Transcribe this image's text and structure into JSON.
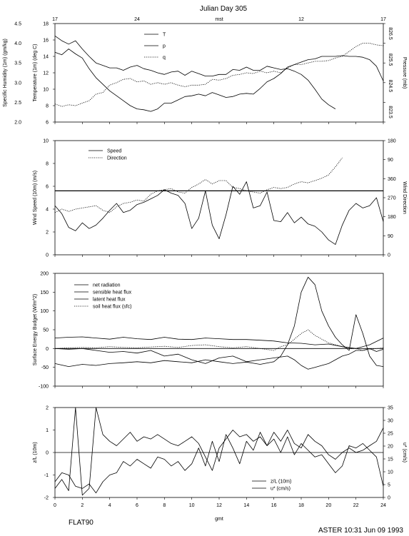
{
  "figure": {
    "title": "Julian Day 305",
    "station": "FLAT90",
    "footer": "ASTER 10:31 Jun 09 1993",
    "top_axis": {
      "unit": "mst",
      "ticks": [
        "17",
        "24",
        "mst",
        "12",
        "17"
      ]
    },
    "bottom_axis": {
      "label": "gmt",
      "ticks": [
        "0",
        "2",
        "4",
        "6",
        "8",
        "10",
        "12",
        "14",
        "16",
        "18",
        "20",
        "22",
        "24"
      ]
    }
  },
  "chart_data": [
    {
      "type": "line",
      "panel": "met",
      "xlim": [
        0,
        24
      ],
      "ylim": [
        6,
        18
      ],
      "ylabel": "Temperature (1m) (deg C)",
      "ylabel2": "Specific Humidity (1m) (gm/kg)",
      "ylabel3": "Pressure (mb)",
      "yticks": [
        "6",
        "8",
        "10",
        "12",
        "14",
        "16",
        "18"
      ],
      "yticks2": [
        "2.0",
        "2.5",
        "3.0",
        "3.5",
        "4.0",
        "4.5"
      ],
      "yticks3": [
        "823.5",
        "824.5",
        "825.5",
        "826.5"
      ],
      "legend": "top-left",
      "series": [
        {
          "name": "T",
          "style": "solid",
          "x": [
            0,
            0.5,
            1,
            1.5,
            2,
            2.5,
            3,
            3.5,
            4,
            4.5,
            5,
            5.5,
            6,
            6.5,
            7,
            7.5,
            8,
            8.5,
            9,
            9.5,
            10,
            10.5,
            11,
            11.5,
            12,
            12.5,
            13,
            13.5,
            14,
            14.5,
            15,
            15.5,
            16,
            16.5,
            17,
            17.5,
            18,
            18.5,
            19,
            19.5,
            20,
            20.5
          ],
          "y": [
            16.5,
            15.9,
            15.5,
            15.9,
            14.9,
            14.0,
            13.2,
            12.9,
            12.6,
            12.6,
            12.3,
            12.7,
            12.9,
            12.5,
            12.3,
            12.0,
            11.8,
            12.1,
            12.2,
            11.7,
            12.2,
            11.9,
            11.6,
            11.6,
            11.8,
            11.8,
            12.4,
            12.3,
            12.7,
            12.3,
            12.3,
            12.8,
            12.6,
            12.4,
            12.5,
            12.2,
            11.8,
            11.1,
            10.0,
            8.8,
            8.1,
            7.6
          ]
        },
        {
          "name": "p",
          "style": "solid",
          "x": [
            0,
            0.5,
            1,
            1.5,
            2,
            2.5,
            3,
            3.5,
            4,
            4.5,
            5,
            5.5,
            6,
            6.5,
            7,
            7.5,
            8,
            8.5,
            9,
            9.5,
            10,
            10.5,
            11,
            11.5,
            12,
            12.5,
            13,
            13.5,
            14,
            14.5,
            15,
            15.5,
            16,
            16.5,
            17,
            17.5,
            18,
            18.5,
            19,
            19.5,
            20,
            20.5,
            21,
            21.5,
            22,
            22.5,
            23,
            23.5,
            24
          ],
          "y": [
            14.5,
            14.2,
            14.9,
            14.3,
            13.8,
            12.5,
            11.4,
            10.6,
            9.8,
            9.2,
            8.6,
            8.0,
            7.6,
            7.5,
            7.3,
            7.6,
            8.3,
            8.3,
            8.7,
            9.1,
            9.2,
            9.4,
            9.2,
            9.6,
            9.3,
            9.0,
            9.1,
            9.4,
            9.5,
            9.4,
            10.1,
            10.9,
            11.3,
            11.9,
            12.7,
            13.0,
            13.3,
            13.6,
            13.7,
            14.0,
            14.0,
            14.0,
            14.1,
            14.0,
            14.0,
            13.9,
            13.6,
            12.8,
            11.0
          ]
        },
        {
          "name": "q",
          "style": "dotted",
          "x": [
            0,
            0.5,
            1,
            1.5,
            2,
            2.5,
            3,
            3.5,
            4,
            4.5,
            5,
            5.5,
            6,
            6.5,
            7,
            7.5,
            8,
            8.5,
            9,
            9.5,
            10,
            10.5,
            11,
            11.5,
            12,
            12.5,
            13,
            13.5,
            14,
            14.5,
            15,
            15.5,
            16,
            16.5,
            17,
            17.5,
            18,
            18.5,
            19,
            19.5,
            20,
            20.5,
            21,
            21.5,
            22,
            22.5,
            23,
            23.5,
            24
          ],
          "y": [
            8.2,
            7.9,
            8.1,
            8.0,
            8.3,
            8.6,
            9.4,
            9.6,
            10.5,
            10.8,
            11.2,
            11.3,
            10.9,
            11.0,
            10.6,
            10.8,
            10.6,
            10.8,
            10.5,
            10.3,
            10.5,
            10.5,
            10.6,
            11.2,
            11.1,
            11.3,
            11.7,
            11.8,
            12.0,
            11.9,
            12.2,
            12.0,
            12.2,
            12.0,
            12.6,
            13.0,
            13.0,
            13.2,
            13.4,
            13.4,
            13.5,
            13.8,
            14.0,
            14.6,
            15.2,
            15.6,
            15.6,
            15.4,
            15.3
          ]
        }
      ]
    },
    {
      "type": "line",
      "panel": "wind",
      "xlim": [
        0,
        24
      ],
      "ylim": [
        0,
        10
      ],
      "ylabel": "Wind Speed (10m) (m/s)",
      "ylabel2": "Wind Direction",
      "yticks": [
        "0",
        "2",
        "4",
        "6",
        "8",
        "10"
      ],
      "yticks2": [
        "0",
        "90",
        "180",
        "270",
        "360",
        "90",
        "180"
      ],
      "reference_line": 5.6,
      "legend": "top-left",
      "series": [
        {
          "name": "Speed",
          "style": "solid",
          "x": [
            0,
            0.5,
            1,
            1.5,
            2,
            2.5,
            3,
            3.5,
            4,
            4.5,
            5,
            5.5,
            6,
            6.5,
            7,
            7.5,
            8,
            8.5,
            9,
            9.5,
            10,
            10.5,
            11,
            11.5,
            12,
            12.5,
            13,
            13.5,
            14,
            14.5,
            15,
            15.5,
            16,
            16.5,
            17,
            17.5,
            18,
            18.5,
            19,
            19.5,
            20,
            20.5,
            21,
            21.5,
            22,
            22.5,
            23,
            23.5,
            24
          ],
          "y": [
            4.3,
            3.6,
            2.4,
            2.1,
            2.8,
            2.3,
            2.6,
            3.2,
            3.9,
            4.5,
            3.7,
            3.9,
            4.4,
            4.6,
            4.9,
            5.2,
            5.7,
            5.4,
            5.2,
            4.5,
            2.3,
            3.2,
            5.6,
            2.6,
            1.4,
            3.5,
            6.0,
            5.3,
            6.4,
            4.1,
            4.3,
            5.5,
            3.0,
            2.9,
            3.7,
            2.8,
            3.3,
            2.7,
            2.5,
            2.0,
            1.3,
            0.9,
            2.6,
            3.9,
            4.5,
            4.1,
            4.3,
            5.0,
            2.9
          ]
        },
        {
          "name": "Direction",
          "style": "dotted",
          "x": [
            0,
            0.5,
            1,
            1.5,
            2,
            2.5,
            3,
            3.5,
            4,
            4.5,
            5,
            5.5,
            6,
            6.5,
            7,
            7.5,
            8,
            8.5,
            9,
            9.5,
            10,
            10.5,
            11,
            11.5,
            12,
            12.5,
            13,
            13.5,
            14,
            14.5,
            15,
            15.5,
            16,
            16.5,
            17,
            17.5,
            18,
            18.5,
            19,
            19.5,
            20,
            20.5,
            21
          ],
          "y": [
            3.7,
            4.0,
            3.8,
            4.0,
            4.1,
            4.2,
            4.3,
            3.9,
            3.7,
            4.2,
            4.5,
            4.6,
            4.8,
            4.7,
            5.3,
            5.6,
            5.7,
            5.8,
            5.5,
            5.4,
            5.9,
            6.2,
            6.6,
            6.2,
            6.5,
            6.5,
            5.9,
            5.8,
            5.6,
            5.5,
            5.4,
            5.7,
            5.9,
            5.8,
            5.9,
            6.2,
            6.4,
            6.3,
            6.5,
            6.7,
            7.0,
            7.7,
            8.5
          ]
        }
      ]
    },
    {
      "type": "line",
      "panel": "energy",
      "xlim": [
        0,
        24
      ],
      "ylim": [
        -100,
        200
      ],
      "ylabel": "Surface Energy Budget (W/m^2)",
      "yticks": [
        "-100",
        "-50",
        "0",
        "50",
        "100",
        "150",
        "200"
      ],
      "reference_line": 0,
      "legend": "top-left",
      "series": [
        {
          "name": "net radiation",
          "style": "solid",
          "x": [
            0,
            1,
            2,
            3,
            4,
            5,
            6,
            7,
            8,
            9,
            10,
            11,
            12,
            13,
            14,
            15,
            16,
            16.5,
            17,
            17.5,
            18,
            18.5,
            19,
            19.5,
            20,
            20.5,
            21,
            21.5,
            22,
            22.5,
            23,
            23.5,
            24
          ],
          "y": [
            -40,
            -48,
            -42,
            -45,
            -40,
            -38,
            -35,
            -38,
            -32,
            -35,
            -38,
            -30,
            -35,
            -40,
            -36,
            -42,
            -35,
            -20,
            10,
            60,
            150,
            190,
            170,
            100,
            60,
            30,
            10,
            -5,
            90,
            40,
            -20,
            -45,
            -48
          ]
        },
        {
          "name": "sensible heat flux",
          "style": "solid",
          "x": [
            0,
            1,
            2,
            3,
            4,
            5,
            6,
            7,
            8,
            9,
            10,
            11,
            12,
            13,
            14,
            15,
            16,
            17,
            18,
            19,
            20,
            21,
            22,
            23,
            24
          ],
          "y": [
            28,
            30,
            31,
            28,
            25,
            30,
            26,
            24,
            30,
            25,
            24,
            28,
            26,
            24,
            24,
            22,
            20,
            15,
            14,
            10,
            12,
            5,
            0,
            10,
            28
          ]
        },
        {
          "name": "latent heat flux",
          "style": "solid",
          "x": [
            0,
            1,
            2,
            3,
            4,
            5,
            6,
            7,
            8,
            9,
            10,
            11,
            12,
            13,
            14,
            15,
            16,
            17,
            17.5,
            18,
            18.5,
            19,
            19.5,
            20,
            20.5,
            21,
            21.5,
            22,
            22.5,
            23,
            23.5,
            24
          ],
          "y": [
            0,
            -2,
            0,
            -5,
            -10,
            -8,
            -12,
            -5,
            -20,
            -15,
            -30,
            -40,
            -25,
            -20,
            -35,
            -30,
            -25,
            -20,
            -30,
            -45,
            -55,
            -50,
            -45,
            -40,
            -30,
            -20,
            -15,
            -5,
            -5,
            0,
            -8,
            -2
          ]
        },
        {
          "name": "soil heat flux (sfc)",
          "style": "dotted",
          "x": [
            0,
            1,
            2,
            3,
            4,
            5,
            6,
            7,
            8,
            9,
            10,
            11,
            12,
            13,
            14,
            15,
            16,
            16.5,
            17,
            17.5,
            18,
            18.5,
            19,
            19.5,
            20,
            20.5,
            21,
            21.5,
            22,
            22.5,
            23,
            23.5,
            24
          ],
          "y": [
            0,
            2,
            3,
            2,
            5,
            3,
            2,
            4,
            6,
            3,
            8,
            10,
            5,
            2,
            5,
            0,
            -5,
            5,
            10,
            25,
            40,
            50,
            35,
            25,
            15,
            10,
            5,
            0,
            0,
            -5,
            -2,
            0,
            2
          ]
        }
      ]
    },
    {
      "type": "line",
      "panel": "stability",
      "xlim": [
        0,
        24
      ],
      "ylim": [
        -2,
        2
      ],
      "xlabel": "gmt",
      "xticks": [
        "0",
        "2",
        "4",
        "6",
        "8",
        "10",
        "12",
        "14",
        "16",
        "18",
        "20",
        "22",
        "24"
      ],
      "ylabel": "z/L (10m)",
      "ylabel2": "u* (cm/s)",
      "yticks": [
        "-2",
        "-1",
        "0",
        "1",
        "2"
      ],
      "yticks2": [
        "0",
        "5",
        "10",
        "15",
        "20",
        "25",
        "30",
        "35"
      ],
      "reference_line": 0,
      "legend": "bottom-right",
      "series": [
        {
          "name": "z/L (10m)",
          "style": "solid",
          "x": [
            0,
            0.5,
            1,
            1.5,
            2,
            2.5,
            3,
            3.5,
            4,
            4.5,
            5,
            5.5,
            6,
            6.5,
            7,
            7.5,
            8,
            8.5,
            9,
            9.5,
            10,
            10.5,
            11,
            11.5,
            12,
            12.5,
            13,
            13.5,
            14,
            14.5,
            15,
            15.5,
            16,
            16.5,
            17,
            17.5,
            18,
            18.5,
            19,
            19.5,
            20,
            20.5,
            21,
            21.5,
            22,
            22.5,
            23,
            23.5,
            24
          ],
          "y": [
            -1.6,
            -1.2,
            -1.7,
            2.0,
            -1.9,
            -1.6,
            2.0,
            0.8,
            0.5,
            0.3,
            0.6,
            0.9,
            0.5,
            0.7,
            0.6,
            0.8,
            0.6,
            0.4,
            0.3,
            0.5,
            0.7,
            0.4,
            -0.2,
            -0.8,
            0.2,
            0.6,
            1.0,
            0.7,
            0.8,
            0.5,
            0.7,
            0.3,
            0.9,
            0.5,
            1.0,
            0.4,
            0.2,
            0.8,
            0.5,
            0.3,
            -0.1,
            -0.3,
            0.0,
            0.2,
            0.0,
            0.1,
            0.3,
            0.5,
            1.1
          ]
        },
        {
          "name": "u* (cm/s)",
          "style": "solid",
          "x": [
            0,
            0.5,
            1,
            1.5,
            2,
            2.5,
            3,
            3.5,
            4,
            4.5,
            5,
            5.5,
            6,
            6.5,
            7,
            7.5,
            8,
            8.5,
            9,
            9.5,
            10,
            10.5,
            11,
            11.5,
            12,
            12.5,
            13,
            13.5,
            14,
            14.5,
            15,
            15.5,
            16,
            16.5,
            17,
            17.5,
            18,
            18.5,
            19,
            19.5,
            20,
            20.5,
            21,
            21.5,
            22,
            22.5,
            23,
            23.5,
            24
          ],
          "y": [
            -1.3,
            -0.9,
            -1.0,
            -1.5,
            -1.6,
            -1.4,
            -1.8,
            -1.3,
            -1.0,
            -0.9,
            -0.4,
            -0.6,
            -0.3,
            -0.5,
            -0.7,
            -0.2,
            -0.3,
            -0.6,
            -0.4,
            -0.8,
            -0.5,
            0.2,
            -0.6,
            0.5,
            -0.4,
            0.8,
            0.2,
            -0.5,
            0.5,
            0.1,
            0.9,
            0.3,
            0.6,
            0.0,
            0.7,
            -0.1,
            0.4,
            0.1,
            -0.2,
            -0.1,
            -0.5,
            -0.9,
            -0.6,
            0.3,
            0.2,
            0.4,
            0.1,
            -0.2,
            -1.5
          ]
        }
      ]
    }
  ]
}
